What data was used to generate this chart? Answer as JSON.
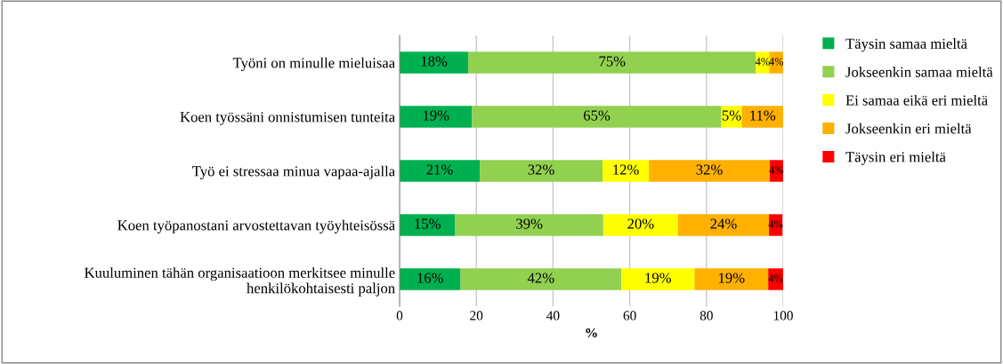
{
  "chart_data": {
    "type": "bar",
    "orientation": "horizontal",
    "stacked": true,
    "xlabel": "%",
    "categories": [
      "Työni on minulle mieluisaa",
      "Koen työssäni onnistumisen tunteita",
      "Työ ei stressaa minua vapaa-ajalla",
      "Koen työpanostani arvostettavan työyhteisössä",
      "Kuuluminen tähän organisaatioon merkitsee minulle henkilökohtaisesti paljon"
    ],
    "series": [
      {
        "name": "Täysin samaa mieltä",
        "color": "#00b050",
        "values": [
          17.9,
          18.9,
          20.9,
          14.5,
          15.9
        ],
        "value_labels": [
          "18%",
          "19%",
          "21%",
          "15%",
          "16%"
        ]
      },
      {
        "name": "Jokseenkin samaa mieltä",
        "color": "#92d050",
        "values": [
          75.0,
          65.0,
          32.0,
          38.6,
          41.9
        ],
        "value_labels": [
          "75%",
          "65%",
          "32%",
          "39%",
          "42%"
        ]
      },
      {
        "name": "Ei samaa eikä eri mieltä",
        "color": "#ffff00",
        "values": [
          3.5,
          5.3,
          12.1,
          19.5,
          19.1
        ],
        "value_labels": [
          "4%",
          "5%",
          "12%",
          "20%",
          "19%"
        ]
      },
      {
        "name": "Jokseenkin eri mieltä",
        "color": "#ffb000",
        "values": [
          3.6,
          10.8,
          31.5,
          23.7,
          19.2
        ],
        "value_labels": [
          "4%",
          "11%",
          "32%",
          "24%",
          "19%"
        ]
      },
      {
        "name": "Täysin eri mieltä",
        "color": "#ff0000",
        "values": [
          null,
          null,
          3.5,
          3.5,
          3.9
        ],
        "value_labels": [
          null,
          null,
          "4%",
          "4%",
          "4%"
        ]
      }
    ],
    "xlim": [
      0,
      100
    ],
    "xticks": [
      0,
      20,
      40,
      60,
      80,
      100
    ],
    "grid": "x",
    "legend": "right"
  }
}
